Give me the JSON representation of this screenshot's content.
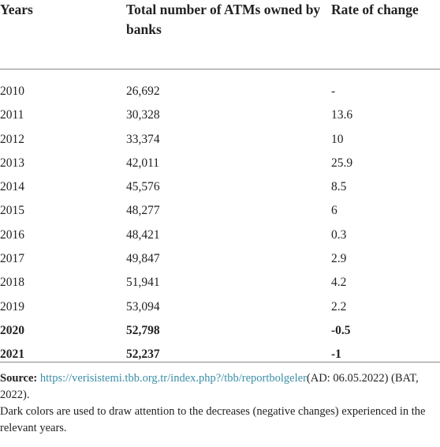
{
  "table": {
    "header": [
      "Years",
      "Total number of ATMs owned by banks",
      "Rate of change"
    ],
    "rows": [
      [
        "2010",
        "26,692",
        "-"
      ],
      [
        "2011",
        "30,328",
        "13.6"
      ],
      [
        "2012",
        "33,374",
        "10"
      ],
      [
        "2013",
        "42,011",
        "25.9"
      ],
      [
        "2014",
        "45,576",
        "8.5"
      ],
      [
        "2015",
        "48,277",
        "6"
      ],
      [
        "2016",
        "48,421",
        "0.3"
      ],
      [
        "2017",
        "49,847",
        "2.9"
      ],
      [
        "2018",
        "51,941",
        "4.2"
      ],
      [
        "2019",
        "53,094",
        "2.2"
      ],
      [
        "2020",
        "52,798",
        "-0.5"
      ],
      [
        "2021",
        "52,237",
        "-1"
      ]
    ]
  },
  "footer": {
    "source_label": "Source:",
    "source_url": "https://verisistemi.tbb.org.tr/index.php?/tbb/reportbolgeler",
    "source_rest": "(AD: 06.05.2022) (BAT, 2022).",
    "note": "Dark colors are used to draw attention to the decreases (negative changes) experienced in the relevant years."
  }
}
